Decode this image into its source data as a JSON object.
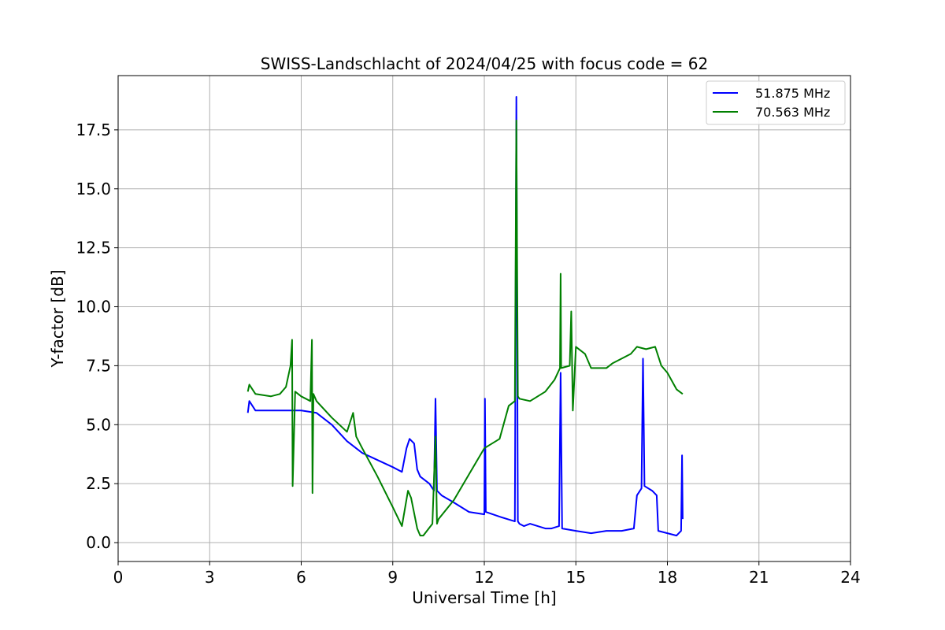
{
  "chart_data": {
    "type": "line",
    "title": "SWISS-Landschlacht of 2024/04/25 with focus code = 62",
    "xlabel": "Universal Time [h]",
    "ylabel": "Y-factor [dB]",
    "xlim": [
      0,
      24
    ],
    "ylim": [
      -0.8,
      19.8
    ],
    "xticks": [
      0,
      3,
      6,
      9,
      12,
      15,
      18,
      21,
      24
    ],
    "xtick_labels": [
      "0",
      "3",
      "6",
      "9",
      "12",
      "15",
      "18",
      "21",
      "24"
    ],
    "yticks": [
      0.0,
      2.5,
      5.0,
      7.5,
      10.0,
      12.5,
      15.0,
      17.5
    ],
    "ytick_labels": [
      "0.0",
      "2.5",
      "5.0",
      "7.5",
      "10.0",
      "12.5",
      "15.0",
      "17.5"
    ],
    "grid": true,
    "legend": "top-right",
    "series": [
      {
        "name": "51.875 MHz",
        "color": "#0000ff",
        "x": [
          4.25,
          4.3,
          4.5,
          5.0,
          5.5,
          6.0,
          6.5,
          7.0,
          7.5,
          8.0,
          8.5,
          9.0,
          9.3,
          9.45,
          9.55,
          9.7,
          9.8,
          9.9,
          10.2,
          10.35,
          10.4,
          10.45,
          10.6,
          11.0,
          11.5,
          12.0,
          12.02,
          12.05,
          12.5,
          13.0,
          13.05,
          13.1,
          13.15,
          13.3,
          13.5,
          14.0,
          14.2,
          14.45,
          14.5,
          14.55,
          15.0,
          15.5,
          16.0,
          16.5,
          16.9,
          17.0,
          17.15,
          17.2,
          17.25,
          17.5,
          17.65,
          17.7,
          18.0,
          18.3,
          18.45,
          18.48,
          18.5
        ],
        "y": [
          5.5,
          6.0,
          5.6,
          5.6,
          5.6,
          5.6,
          5.5,
          5.0,
          4.3,
          3.8,
          3.5,
          3.2,
          3.0,
          4.0,
          4.4,
          4.2,
          3.1,
          2.8,
          2.5,
          2.2,
          6.1,
          2.2,
          2.0,
          1.7,
          1.3,
          1.2,
          6.1,
          1.3,
          1.1,
          0.9,
          18.9,
          0.9,
          0.8,
          0.7,
          0.8,
          0.6,
          0.6,
          0.7,
          7.2,
          0.6,
          0.5,
          0.4,
          0.5,
          0.5,
          0.6,
          2.0,
          2.3,
          7.8,
          2.4,
          2.2,
          2.0,
          0.5,
          0.4,
          0.3,
          0.5,
          3.7,
          1.0
        ]
      },
      {
        "name": "70.563 MHz",
        "color": "#008000",
        "x": [
          4.25,
          4.3,
          4.5,
          5.0,
          5.3,
          5.5,
          5.65,
          5.7,
          5.72,
          5.8,
          6.0,
          6.3,
          6.35,
          6.37,
          6.4,
          6.5,
          7.0,
          7.5,
          7.7,
          7.8,
          8.0,
          8.5,
          9.0,
          9.3,
          9.5,
          9.6,
          9.8,
          9.9,
          10.0,
          10.3,
          10.4,
          10.45,
          10.5,
          11.0,
          11.5,
          12.0,
          12.5,
          12.8,
          13.0,
          13.05,
          13.1,
          13.15,
          13.5,
          14.0,
          14.3,
          14.48,
          14.5,
          14.52,
          14.8,
          14.85,
          14.9,
          15.0,
          15.3,
          15.5,
          16.0,
          16.2,
          16.5,
          16.8,
          17.0,
          17.3,
          17.6,
          17.8,
          18.0,
          18.3,
          18.5
        ],
        "y": [
          6.4,
          6.7,
          6.3,
          6.2,
          6.3,
          6.6,
          7.5,
          8.6,
          2.4,
          6.4,
          6.2,
          6.0,
          8.6,
          2.1,
          6.3,
          6.0,
          5.3,
          4.7,
          5.5,
          4.5,
          4.0,
          2.8,
          1.5,
          0.7,
          2.2,
          1.9,
          0.6,
          0.3,
          0.3,
          0.8,
          4.5,
          0.8,
          1.0,
          1.8,
          2.9,
          4.0,
          4.4,
          5.8,
          6.0,
          17.9,
          6.2,
          6.1,
          6.0,
          6.4,
          6.9,
          7.4,
          11.4,
          7.4,
          7.5,
          9.8,
          5.6,
          8.3,
          8.0,
          7.4,
          7.4,
          7.6,
          7.8,
          8.0,
          8.3,
          8.2,
          8.3,
          7.5,
          7.2,
          6.5,
          6.3
        ]
      }
    ]
  }
}
